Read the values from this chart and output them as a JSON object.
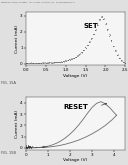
{
  "header_text": "Patent Application Publication    Jul. 18, 2013  Sheet 13 of 13    US 2013/0181844 A1",
  "top_label": "FIG. 15A",
  "bottom_label": "FIG. 15B",
  "top_title": "SET",
  "bottom_title": "RESET",
  "xlabel": "Voltage (V)",
  "ylabel_top": "Current (mA)",
  "ylabel_bottom": "Current (mA)",
  "fig_bg": "#e0e0e0",
  "plot_bg": "#f5f5f5",
  "set_scatter_x": [
    0.0,
    0.05,
    0.1,
    0.15,
    0.2,
    0.25,
    0.3,
    0.35,
    0.4,
    0.45,
    0.5,
    0.55,
    0.6,
    0.65,
    0.7,
    0.75,
    0.8,
    0.85,
    0.9,
    0.95,
    1.0,
    1.05,
    1.1,
    1.15,
    1.2,
    1.25,
    1.3,
    1.35,
    1.4,
    1.45,
    1.5,
    1.55,
    1.6,
    1.65,
    1.7,
    1.75,
    1.8,
    1.85,
    1.9,
    1.95,
    2.0,
    2.05,
    2.1,
    2.15,
    2.2,
    2.25,
    2.3,
    2.35,
    2.4,
    2.45,
    2.5
  ],
  "set_scatter_y": [
    0.04,
    0.045,
    0.045,
    0.05,
    0.05,
    0.055,
    0.055,
    0.06,
    0.065,
    0.065,
    0.07,
    0.075,
    0.08,
    0.085,
    0.09,
    0.1,
    0.11,
    0.12,
    0.14,
    0.16,
    0.19,
    0.22,
    0.26,
    0.31,
    0.37,
    0.44,
    0.52,
    0.62,
    0.73,
    0.86,
    1.0,
    1.18,
    1.38,
    1.6,
    1.85,
    2.12,
    2.42,
    2.74,
    2.95,
    2.8,
    2.5,
    2.15,
    1.8,
    1.45,
    1.12,
    0.82,
    0.56,
    0.36,
    0.21,
    0.11,
    0.05
  ],
  "set_xlim": [
    0.0,
    2.5
  ],
  "set_ylim": [
    -0.1,
    3.2
  ],
  "set_xticks": [
    0.0,
    0.5,
    1.0,
    1.5,
    2.0,
    2.5
  ],
  "set_yticks": [
    0.0,
    1.0,
    2.0,
    3.0
  ],
  "reset_forward_x": [
    0.0,
    0.1,
    0.2,
    0.4,
    0.6,
    0.8,
    1.0,
    1.2,
    1.4,
    1.6,
    1.8,
    2.0,
    2.2,
    2.4,
    2.6,
    2.8,
    3.0,
    3.2,
    3.4,
    3.6,
    3.8,
    4.0,
    4.1
  ],
  "reset_forward_y": [
    0.01,
    0.01,
    0.015,
    0.02,
    0.04,
    0.08,
    0.15,
    0.26,
    0.42,
    0.63,
    0.9,
    1.22,
    1.6,
    2.05,
    2.55,
    3.1,
    3.6,
    3.95,
    4.1,
    3.9,
    3.55,
    3.1,
    2.9
  ],
  "reset_return_x": [
    4.1,
    3.9,
    3.6,
    3.3,
    3.0,
    2.7,
    2.4,
    2.1,
    1.8,
    1.5,
    1.2,
    1.0,
    0.8,
    0.6,
    0.4,
    0.2,
    0.05,
    0.0
  ],
  "reset_return_y": [
    2.9,
    2.5,
    2.0,
    1.6,
    1.25,
    0.95,
    0.7,
    0.5,
    0.33,
    0.2,
    0.11,
    0.07,
    0.04,
    0.025,
    0.015,
    0.008,
    0.003,
    0.002
  ],
  "reset_xlim": [
    0.0,
    4.5
  ],
  "reset_ylim": [
    -0.2,
    4.5
  ],
  "reset_xticks": [
    0,
    1,
    2,
    3,
    4
  ],
  "reset_yticks": [
    0,
    1,
    2,
    3,
    4
  ],
  "line_color": "#555555",
  "scatter_color": "#555555"
}
